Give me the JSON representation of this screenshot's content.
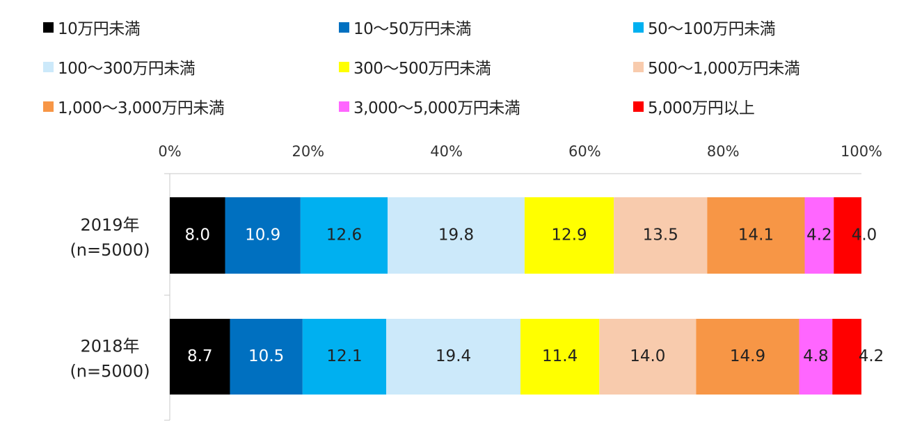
{
  "chart_data": {
    "type": "bar",
    "orientation": "horizontal",
    "stacked": true,
    "percent_stacked": true,
    "xlim": [
      0,
      100
    ],
    "x_ticks": [
      "0%",
      "20%",
      "40%",
      "60%",
      "80%",
      "100%"
    ],
    "categories": [
      [
        "2019年",
        "(n=5000)"
      ],
      [
        "2018年",
        "(n=5000)"
      ]
    ],
    "series": [
      {
        "name": "10万円未満",
        "color": "#000000",
        "label_color": "#ffffff",
        "values": [
          8.0,
          8.7
        ]
      },
      {
        "name": "10～50万円未満",
        "color": "#0070c0",
        "label_color": "#ffffff",
        "values": [
          10.9,
          10.5
        ]
      },
      {
        "name": "50～100万円未満",
        "color": "#00b0f0",
        "label_color": "#222222",
        "values": [
          12.6,
          12.1
        ]
      },
      {
        "name": "100～300万円未満",
        "color": "#cce9fa",
        "label_color": "#222222",
        "values": [
          19.8,
          19.4
        ]
      },
      {
        "name": "300～500万円未満",
        "color": "#ffff00",
        "label_color": "#222222",
        "values": [
          12.9,
          11.4
        ]
      },
      {
        "name": "500～1,000万円未満",
        "color": "#f8cbad",
        "label_color": "#222222",
        "values": [
          13.5,
          14.0
        ]
      },
      {
        "name": "1,000～3,000万円未満",
        "color": "#f79646",
        "label_color": "#222222",
        "values": [
          14.1,
          14.9
        ]
      },
      {
        "name": "3,000～5,000万円未満",
        "color": "#ff66ff",
        "label_color": "#222222",
        "values": [
          4.2,
          4.8
        ]
      },
      {
        "name": "5,000万円以上",
        "color": "#ff0000",
        "label_color": "#222222",
        "values": [
          4.0,
          4.2
        ]
      }
    ],
    "value_labels": [
      [
        "8.0",
        "10.9",
        "12.6",
        "19.8",
        "12.9",
        "13.5",
        "14.1",
        "4.2",
        "4.0"
      ],
      [
        "8.7",
        "10.5",
        "12.1",
        "19.4",
        "11.4",
        "14.0",
        "14.9",
        "4.8",
        "4.2"
      ]
    ],
    "legend_position": "top",
    "grid": false
  }
}
